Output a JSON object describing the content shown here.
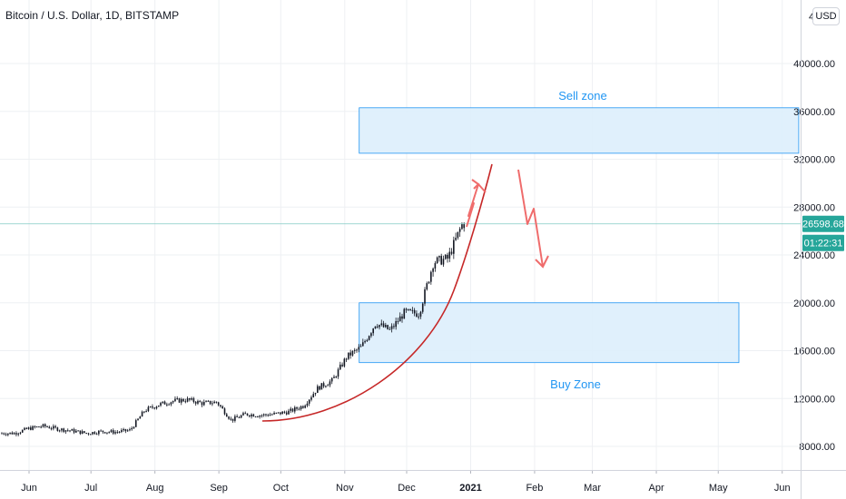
{
  "header": {
    "symbol_title": "Bitcoin / U.S. Dollar, 1D, BITSTAMP",
    "currency_button": "USD"
  },
  "price_axis": {
    "ticks": [
      "8000.00",
      "12000.00",
      "16000.00",
      "20000.00",
      "24000.00",
      "28000.00",
      "32000.00",
      "36000.00",
      "40000.00"
    ],
    "top_tick_partial": "4",
    "current_price": "26598.68",
    "countdown": "01:22:31"
  },
  "time_axis": {
    "labels": [
      "Jun",
      "Jul",
      "Aug",
      "Sep",
      "Oct",
      "Nov",
      "Dec",
      "2021",
      "Feb",
      "Mar",
      "Apr",
      "May",
      "Jun"
    ]
  },
  "annotations": {
    "sell_zone_label": "Sell zone",
    "buy_zone_label": "Buy Zone"
  },
  "colors": {
    "candle_up": "#26a69a",
    "candle_down": "#ef5350",
    "candles_shown": "#131722",
    "zone_fill": "#ddeefc",
    "zone_border": "#2196f3",
    "zone_text": "#2196f3",
    "curve": "#c62828",
    "arrow": "#ef6c6c",
    "price_label_bg": "#26a69a"
  },
  "chart_data": {
    "type": "candlestick",
    "title": "Bitcoin / U.S. Dollar, 1D, BITSTAMP",
    "ylim": [
      6000,
      44000
    ],
    "last_price": 26598.68,
    "series": [
      {
        "x": "2020-05-25",
        "y": 9100
      },
      {
        "x": "2020-06-01",
        "y": 9500
      },
      {
        "x": "2020-06-08",
        "y": 9700
      },
      {
        "x": "2020-06-15",
        "y": 9450
      },
      {
        "x": "2020-06-22",
        "y": 9300
      },
      {
        "x": "2020-06-29",
        "y": 9100
      },
      {
        "x": "2020-07-06",
        "y": 9250
      },
      {
        "x": "2020-07-13",
        "y": 9200
      },
      {
        "x": "2020-07-20",
        "y": 9350
      },
      {
        "x": "2020-07-27",
        "y": 11000
      },
      {
        "x": "2020-08-03",
        "y": 11500
      },
      {
        "x": "2020-08-10",
        "y": 11800
      },
      {
        "x": "2020-08-17",
        "y": 11900
      },
      {
        "x": "2020-08-24",
        "y": 11600
      },
      {
        "x": "2020-08-31",
        "y": 11700
      },
      {
        "x": "2020-09-07",
        "y": 10200
      },
      {
        "x": "2020-09-14",
        "y": 10700
      },
      {
        "x": "2020-09-21",
        "y": 10600
      },
      {
        "x": "2020-09-28",
        "y": 10700
      },
      {
        "x": "2020-10-05",
        "y": 10900
      },
      {
        "x": "2020-10-12",
        "y": 11400
      },
      {
        "x": "2020-10-19",
        "y": 12900
      },
      {
        "x": "2020-10-26",
        "y": 13500
      },
      {
        "x": "2020-11-02",
        "y": 15500
      },
      {
        "x": "2020-11-09",
        "y": 16300
      },
      {
        "x": "2020-11-16",
        "y": 18300
      },
      {
        "x": "2020-11-23",
        "y": 17700
      },
      {
        "x": "2020-11-30",
        "y": 19200
      },
      {
        "x": "2020-12-07",
        "y": 19100
      },
      {
        "x": "2020-12-14",
        "y": 23400
      },
      {
        "x": "2020-12-21",
        "y": 23700
      },
      {
        "x": "2020-12-28",
        "y": 26600
      }
    ],
    "zones": [
      {
        "name": "Sell zone",
        "from": "2020-11-08",
        "to": "2021-06-09",
        "low": 32500,
        "high": 36300
      },
      {
        "name": "Buy Zone",
        "from": "2020-11-08",
        "to": "2021-05-11",
        "low": 15000,
        "high": 20000
      }
    ]
  }
}
